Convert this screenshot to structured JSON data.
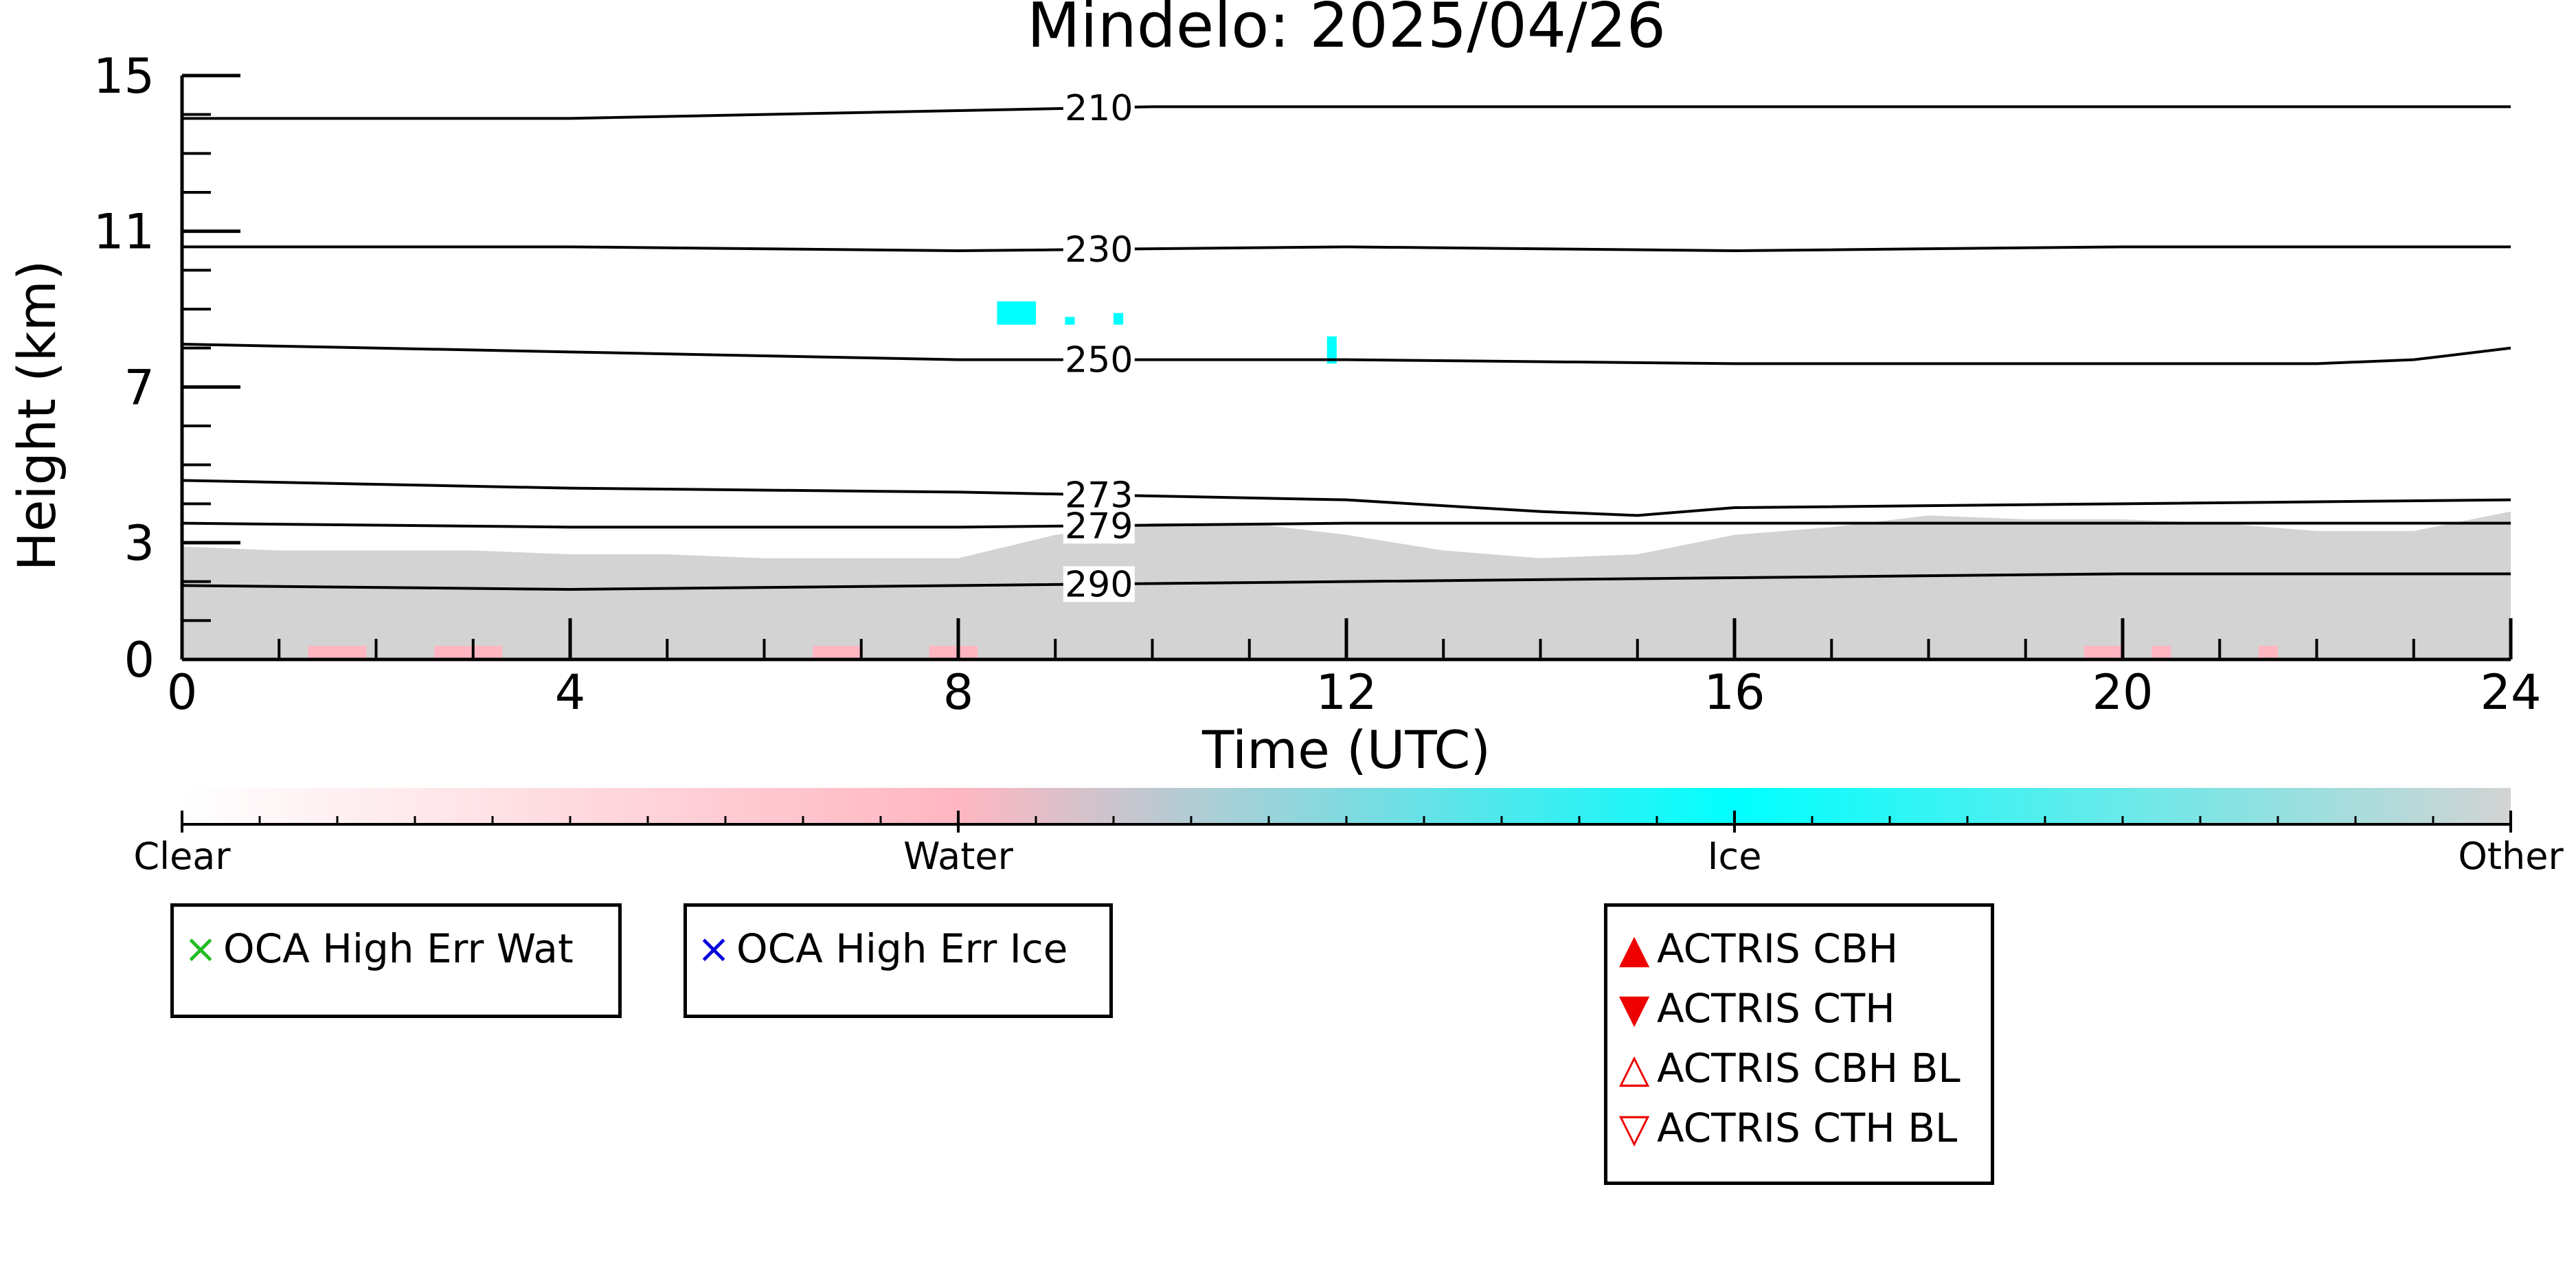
{
  "chart_data": {
    "type": "heatmap",
    "title": "Mindelo: 2025/04/26",
    "xlabel": "Time (UTC)",
    "ylabel": "Height (km)",
    "xlim": [
      0,
      24
    ],
    "ylim": [
      0,
      15
    ],
    "x_ticks": [
      0,
      4,
      8,
      12,
      16,
      20,
      24
    ],
    "y_ticks": [
      0,
      3,
      7,
      11,
      15
    ],
    "classes": [
      {
        "name": "Clear",
        "color": "#ffffff"
      },
      {
        "name": "Water",
        "color": "#ffb6c1"
      },
      {
        "name": "Ice",
        "color": "#00ffff"
      },
      {
        "name": "Other",
        "color": "#d3d3d3"
      }
    ],
    "other_layer": {
      "x": [
        0,
        1,
        2,
        3,
        4,
        5,
        6,
        7,
        8,
        9,
        10,
        11,
        12,
        13,
        14,
        15,
        16,
        17,
        18,
        19,
        20,
        21,
        22,
        23,
        24
      ],
      "top_km": [
        2.9,
        2.8,
        2.8,
        2.8,
        2.7,
        2.7,
        2.6,
        2.6,
        2.6,
        3.2,
        3.5,
        3.5,
        3.2,
        2.8,
        2.6,
        2.7,
        3.2,
        3.4,
        3.7,
        3.6,
        3.6,
        3.5,
        3.3,
        3.3,
        3.8
      ]
    },
    "water_segments": [
      [
        1.3,
        1.9
      ],
      [
        2.6,
        3.3
      ],
      [
        6.5,
        7.0
      ],
      [
        7.7,
        8.2
      ],
      [
        19.6,
        20.0
      ],
      [
        20.3,
        20.5
      ],
      [
        21.4,
        21.6
      ]
    ],
    "ice_segments": [
      {
        "x0": 8.4,
        "x1": 8.8,
        "y0": 8.6,
        "y1": 9.2
      },
      {
        "x0": 9.1,
        "x1": 9.2,
        "y0": 8.6,
        "y1": 8.8
      },
      {
        "x0": 9.6,
        "x1": 9.7,
        "y0": 8.6,
        "y1": 8.9
      },
      {
        "x0": 11.8,
        "x1": 11.9,
        "y0": 7.6,
        "y1": 8.3
      }
    ],
    "isotherms": [
      {
        "label": "210",
        "x": [
          0,
          4,
          8,
          10,
          12,
          16,
          20,
          22,
          23,
          24
        ],
        "y": [
          13.9,
          13.9,
          14.1,
          14.2,
          14.2,
          14.2,
          14.2,
          14.2,
          14.2,
          14.2
        ]
      },
      {
        "label": "230",
        "x": [
          0,
          4,
          8,
          12,
          16,
          20,
          24
        ],
        "y": [
          10.6,
          10.6,
          10.5,
          10.6,
          10.5,
          10.6,
          10.6
        ]
      },
      {
        "label": "250",
        "x": [
          0,
          4,
          8,
          12,
          16,
          20,
          22,
          23,
          24
        ],
        "y": [
          8.1,
          7.9,
          7.7,
          7.7,
          7.6,
          7.6,
          7.6,
          7.7,
          8.0
        ]
      },
      {
        "label": "273",
        "x": [
          0,
          4,
          8,
          12,
          14,
          15,
          16,
          20,
          24
        ],
        "y": [
          4.6,
          4.4,
          4.3,
          4.1,
          3.8,
          3.7,
          3.9,
          4.0,
          4.1
        ]
      },
      {
        "label": "279",
        "x": [
          0,
          4,
          8,
          12,
          16,
          20,
          24
        ],
        "y": [
          3.5,
          3.4,
          3.4,
          3.5,
          3.5,
          3.5,
          3.5
        ]
      },
      {
        "label": "290",
        "x": [
          0,
          4,
          8,
          12,
          16,
          20,
          24
        ],
        "y": [
          1.9,
          1.8,
          1.9,
          2.0,
          2.1,
          2.2,
          2.2
        ]
      }
    ],
    "isotherm_label_x": 9.45,
    "legend_left": [
      {
        "label": "OCA High Err Wat",
        "marker": "×",
        "color": "#22bb22"
      }
    ],
    "legend_middle": [
      {
        "label": "OCA High Err Ice",
        "marker": "×",
        "color": "#0000dd"
      }
    ],
    "legend_right": [
      {
        "label": "ACTRIS CBH",
        "marker": "▲",
        "color": "#ee0000"
      },
      {
        "label": "ACTRIS CTH",
        "marker": "▼",
        "color": "#ee0000"
      },
      {
        "label": "ACTRIS CBH BL",
        "marker": "△",
        "color": "#ee0000"
      },
      {
        "label": "ACTRIS CTH BL",
        "marker": "▽",
        "color": "#ee0000"
      }
    ]
  }
}
